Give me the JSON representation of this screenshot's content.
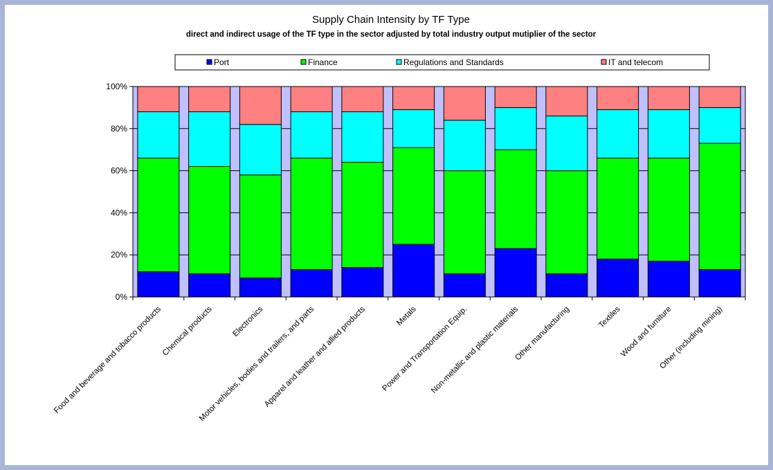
{
  "chart_data": {
    "type": "bar",
    "stacked": "percent",
    "title": "Supply Chain Intensity by TF Type",
    "subtitle": "direct and indirect usage of the TF type in the sector adjusted by total industry output mutiplier of the sector",
    "categories": [
      "Food and beverage and tobacco products",
      "Chemical products",
      "Electronics",
      "Motor vehicles, bodies and trailers, and parts",
      "Apparel and leather and allied products",
      "Metals",
      "Power and Transportation Equip.",
      "Non-metallic and plastic materials",
      "Other manufacturing",
      "Textiles",
      "Wood and furniture",
      "Other (including mining)"
    ],
    "series": [
      {
        "name": "Port",
        "color": "#0000ff",
        "values": [
          12,
          11,
          9,
          13,
          14,
          25,
          11,
          23,
          11,
          18,
          17,
          13
        ]
      },
      {
        "name": "Finance",
        "color": "#00ff00",
        "values": [
          54,
          51,
          49,
          53,
          50,
          46,
          49,
          47,
          49,
          48,
          49,
          60
        ]
      },
      {
        "name": "Regulations and Standards",
        "color": "#00ffff",
        "values": [
          22,
          26,
          24,
          22,
          24,
          18,
          24,
          20,
          26,
          23,
          23,
          17
        ]
      },
      {
        "name": "IT and telecom",
        "color": "#ff8080",
        "values": [
          12,
          12,
          18,
          12,
          12,
          11,
          16,
          10,
          14,
          11,
          11,
          10
        ]
      }
    ],
    "yticks": [
      "0%",
      "20%",
      "40%",
      "60%",
      "80%",
      "100%"
    ],
    "ylim": [
      0,
      100
    ],
    "xlabel": "",
    "ylabel": "",
    "legend_position": "top",
    "plot_background": "#c0c0ff",
    "grid": true
  }
}
